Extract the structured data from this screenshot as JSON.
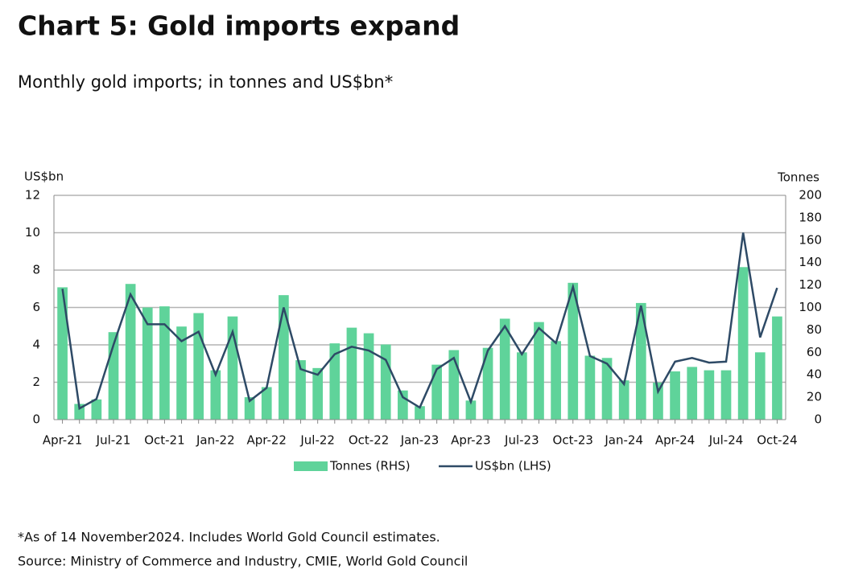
{
  "chart_data": {
    "type": "bar_line",
    "title": "Chart 5: Gold imports expand",
    "subtitle": "Monthly gold imports; in tonnes and US$bn*",
    "y_label": "US$bn",
    "y2_label": "Tonnes",
    "categories": [
      "Apr-21",
      null,
      null,
      "Jul-21",
      null,
      null,
      "Oct-21",
      null,
      null,
      "Jan-22",
      null,
      null,
      "Apr-22",
      null,
      null,
      "Jul-22",
      null,
      null,
      "Oct-22",
      null,
      null,
      "Jan-23",
      null,
      null,
      "Apr-23",
      null,
      null,
      "Jul-23",
      null,
      null,
      "Oct-23",
      null,
      null,
      "Jan-24",
      null,
      null,
      "Apr-24",
      null,
      null,
      "Jul-24",
      null,
      null,
      "Oct-24"
    ],
    "series": [
      {
        "name": "Tonnes (RHS)",
        "type": "bar",
        "axis": "y2",
        "color": "#5fd39a",
        "values": [
          118,
          14,
          18,
          78,
          121,
          100,
          101,
          83,
          95,
          44,
          92,
          20,
          29,
          111,
          53,
          46,
          68,
          82,
          77,
          67,
          26,
          12,
          49,
          62,
          17,
          64,
          90,
          60,
          87,
          70,
          122,
          57,
          55,
          35,
          104,
          33,
          43,
          47,
          44,
          44,
          136,
          60,
          92
        ]
      },
      {
        "name": "US$bn (LHS)",
        "type": "line",
        "axis": "y",
        "color": "#2e4a66",
        "values": [
          7.0,
          0.6,
          1.1,
          4.0,
          6.7,
          5.1,
          5.1,
          4.2,
          4.7,
          2.4,
          4.7,
          1.0,
          1.7,
          6.0,
          2.7,
          2.4,
          3.5,
          3.9,
          3.7,
          3.2,
          1.2,
          0.65,
          2.7,
          3.3,
          0.95,
          3.7,
          5.0,
          3.5,
          4.9,
          4.1,
          7.1,
          3.4,
          3.0,
          1.9,
          6.1,
          1.5,
          3.1,
          3.3,
          3.05,
          3.1,
          10.0,
          4.4,
          7.05
        ]
      }
    ],
    "ylim": [
      0,
      12
    ],
    "yticks": [
      0,
      2,
      4,
      6,
      8,
      10,
      12
    ],
    "y2lim": [
      0,
      200
    ],
    "y2ticks": [
      0,
      20,
      40,
      60,
      80,
      100,
      120,
      140,
      160,
      180,
      200
    ],
    "grid": true,
    "legend": "bottom",
    "notes": [
      "*As of 14 November2024. Includes World Gold Council estimates.",
      "Source: Ministry of Commerce and Industry, CMIE, World Gold Council"
    ]
  }
}
